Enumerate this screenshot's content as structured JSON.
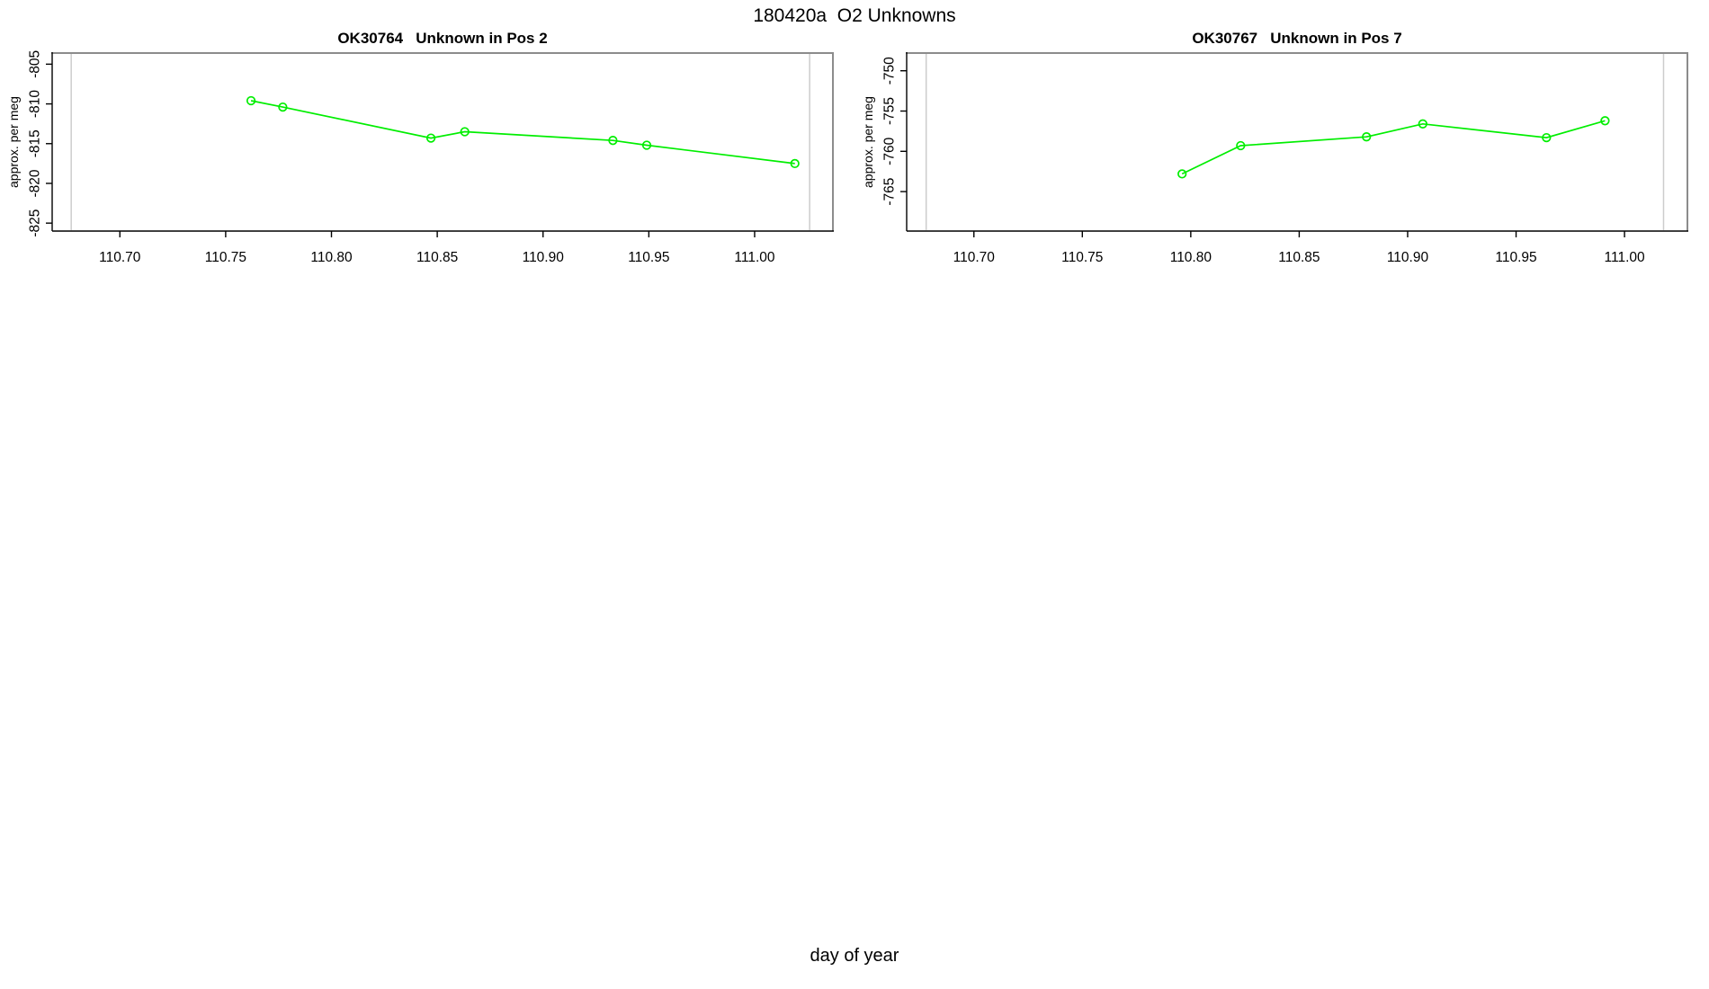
{
  "page_title": "180420a  O2 Unknowns",
  "outer_xlabel": "day of year",
  "colors": {
    "series": "#00EE00",
    "session_marker": "#CCCCCC",
    "frame": "#8C8C8C",
    "axis": "#000000",
    "background": "#FFFFFF",
    "text": "#000000"
  },
  "chart_data": [
    {
      "type": "line",
      "title": "OK30764   Unknown in Pos 2",
      "ylabel": "approx. per meg",
      "xlabel": "day of year",
      "series_name": "OK30764",
      "marker": "open-circle",
      "line_style": "solid",
      "grid": false,
      "legend": null,
      "x": [
        110.762,
        110.777,
        110.847,
        110.863,
        110.933,
        110.949,
        111.019
      ],
      "y": [
        -809.6,
        -810.4,
        -814.3,
        -813.5,
        -814.6,
        -815.2,
        -817.5
      ],
      "xlim": [
        110.668,
        111.037
      ],
      "ylim": [
        -826.0,
        -803.6
      ],
      "xticks": [
        110.7,
        110.75,
        110.8,
        110.85,
        110.9,
        110.95,
        111.0
      ],
      "xtick_labels": [
        "110.70",
        "110.75",
        "110.80",
        "110.85",
        "110.90",
        "110.95",
        "111.00"
      ],
      "yticks": [
        -805,
        -810,
        -815,
        -820,
        -825
      ],
      "ytick_labels": [
        "-805",
        "-810",
        "-815",
        "-820",
        "-825"
      ],
      "vlines": [
        110.677,
        111.026
      ]
    },
    {
      "type": "line",
      "title": "OK30767   Unknown in Pos 7",
      "ylabel": "approx. per meg",
      "xlabel": "day of year",
      "series_name": "OK30767",
      "marker": "open-circle",
      "line_style": "solid",
      "grid": false,
      "legend": null,
      "x": [
        110.796,
        110.823,
        110.881,
        110.907,
        110.964,
        110.991
      ],
      "y": [
        -762.8,
        -759.3,
        -758.2,
        -756.6,
        -758.3,
        -756.2
      ],
      "xlim": [
        110.669,
        111.029
      ],
      "ylim": [
        -769.9,
        -747.8
      ],
      "xticks": [
        110.7,
        110.75,
        110.8,
        110.85,
        110.9,
        110.95,
        111.0
      ],
      "xtick_labels": [
        "110.70",
        "110.75",
        "110.80",
        "110.85",
        "110.90",
        "110.95",
        "111.00"
      ],
      "yticks": [
        -750,
        -755,
        -760,
        -765
      ],
      "ytick_labels": [
        "-750",
        "-755",
        "-760",
        "-765"
      ],
      "vlines": [
        110.678,
        111.018
      ]
    }
  ]
}
